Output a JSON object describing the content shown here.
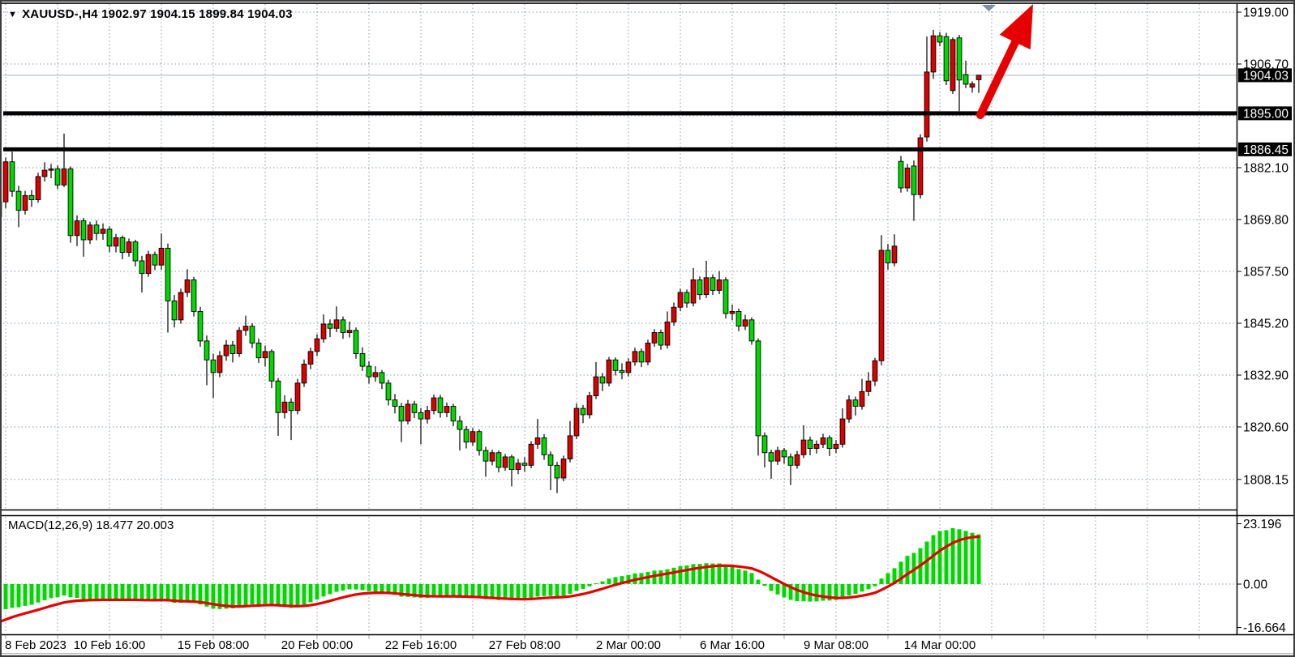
{
  "header": {
    "title": "XAUUSD-,H4  1902.97 1904.15 1899.84 1904.03",
    "symbol": "XAUUSD-",
    "timeframe": "H4",
    "open": "1902.97",
    "high": "1904.15",
    "low": "1899.84",
    "close": "1904.03"
  },
  "price_axis": {
    "labels": [
      {
        "text": "1919.00",
        "price": 1919.0
      },
      {
        "text": "1906.70",
        "price": 1906.7
      },
      {
        "text": "1882.10",
        "price": 1882.1
      },
      {
        "text": "1869.80",
        "price": 1869.8
      },
      {
        "text": "1857.50",
        "price": 1857.5
      },
      {
        "text": "1845.20",
        "price": 1845.2
      },
      {
        "text": "1832.90",
        "price": 1832.9
      },
      {
        "text": "1820.60",
        "price": 1820.6
      },
      {
        "text": "1808.15",
        "price": 1808.15
      }
    ],
    "boxed_labels": [
      {
        "text": "1904.03",
        "price": 1904.03,
        "kind": "current-price"
      },
      {
        "text": "1895.00",
        "price": 1895.0,
        "kind": "line-level"
      },
      {
        "text": "1886.45",
        "price": 1886.45,
        "kind": "line-level"
      }
    ]
  },
  "time_axis": {
    "labels": [
      {
        "text": "8 Feb 2023",
        "candle": 1
      },
      {
        "text": "10 Feb 16:00",
        "candle": 17
      },
      {
        "text": "15 Feb 08:00",
        "candle": 33
      },
      {
        "text": "20 Feb 00:00",
        "candle": 49
      },
      {
        "text": "22 Feb 16:00",
        "candle": 65
      },
      {
        "text": "27 Feb 08:00",
        "candle": 81
      },
      {
        "text": "2 Mar 00:00",
        "candle": 97
      },
      {
        "text": "6 Mar 16:00",
        "candle": 113
      },
      {
        "text": "9 Mar 08:00",
        "candle": 129
      },
      {
        "text": "14 Mar 00:00",
        "candle": 145
      }
    ]
  },
  "macd_panel": {
    "label": "MACD(12,26,9) 18.477 20.003",
    "params": "12,26,9",
    "macd_value": 18.477,
    "signal_value": 20.003,
    "axis_labels": [
      {
        "text": "23.196",
        "value": 23.196
      },
      {
        "text": "0.00",
        "value": 0
      },
      {
        "text": "-16.664",
        "value": -16.664
      }
    ]
  },
  "annotations": {
    "horizontal_lines": [
      1895.0,
      1886.45
    ],
    "current_price_line": 1904.03,
    "trend_arrow": {
      "color": "#e60000",
      "direction": "up"
    },
    "anchor_triangle_color": "#7d8fa6"
  },
  "colors": {
    "background": "#ffffff",
    "grid": "#8d9cb0",
    "bull_candle": "#dc0000",
    "bear_candle": "#00d800",
    "candle_border": "#000000",
    "macd_histogram": "#00d800",
    "macd_signal": "#e60000",
    "level_line": "#000000",
    "current_price_line_color": "#b5c0ce",
    "axis_text": "#000000"
  },
  "chart_data": {
    "type": "candlestick",
    "title": "XAUUSD- H4",
    "ylim": [
      1802,
      1921.5
    ],
    "price_gridlines": [
      1919.0,
      1906.7,
      1894.4,
      1882.1,
      1869.8,
      1857.5,
      1845.2,
      1832.9,
      1820.6,
      1808.15
    ],
    "macd_ylim": [
      -26,
      26
    ],
    "legend_position": "none",
    "grid": true,
    "note_color_scheme": "bullish candles red, bearish candles green",
    "candles": [
      [
        1870.5,
        1876.8,
        1868.9,
        1874.0
      ],
      [
        1874.0,
        1884.5,
        1872.5,
        1883.5
      ],
      [
        1883.5,
        1885.9,
        1875.2,
        1876.5
      ],
      [
        1876.5,
        1877.8,
        1868.0,
        1872.0
      ],
      [
        1872.0,
        1876.6,
        1871.0,
        1875.5
      ],
      [
        1875.5,
        1876.8,
        1872.8,
        1874.5
      ],
      [
        1874.5,
        1880.9,
        1873.8,
        1880.0
      ],
      [
        1880.0,
        1883.4,
        1878.8,
        1881.5
      ],
      [
        1881.5,
        1883.0,
        1879.6,
        1881.8
      ],
      [
        1881.8,
        1882.6,
        1877.0,
        1878.0
      ],
      [
        1878.0,
        1890.2,
        1877.5,
        1881.8
      ],
      [
        1881.8,
        1882.4,
        1864.3,
        1866.0
      ],
      [
        1866.0,
        1870.8,
        1863.5,
        1869.5
      ],
      [
        1869.5,
        1870.2,
        1861.0,
        1865.0
      ],
      [
        1865.0,
        1869.3,
        1864.0,
        1868.5
      ],
      [
        1868.5,
        1869.6,
        1864.9,
        1866.5
      ],
      [
        1866.5,
        1868.9,
        1865.0,
        1867.5
      ],
      [
        1867.5,
        1868.2,
        1862.1,
        1863.5
      ],
      [
        1863.5,
        1866.4,
        1862.0,
        1865.5
      ],
      [
        1865.5,
        1866.0,
        1860.4,
        1862.0
      ],
      [
        1862.0,
        1865.3,
        1861.0,
        1864.5
      ],
      [
        1864.5,
        1865.0,
        1858.7,
        1860.0
      ],
      [
        1860.0,
        1861.2,
        1852.5,
        1857.0
      ],
      [
        1857.0,
        1862.4,
        1856.2,
        1861.5
      ],
      [
        1861.5,
        1862.2,
        1857.8,
        1859.0
      ],
      [
        1859.0,
        1866.5,
        1857.9,
        1863.0
      ],
      [
        1863.0,
        1864.1,
        1843.0,
        1850.5
      ],
      [
        1850.5,
        1851.9,
        1844.2,
        1846.0
      ],
      [
        1846.0,
        1853.4,
        1845.1,
        1852.5
      ],
      [
        1852.5,
        1858.0,
        1851.4,
        1855.5
      ],
      [
        1855.5,
        1856.2,
        1846.8,
        1848.0
      ],
      [
        1848.0,
        1849.1,
        1839.6,
        1841.0
      ],
      [
        1841.0,
        1842.3,
        1830.5,
        1836.5
      ],
      [
        1836.5,
        1838.0,
        1827.5,
        1833.5
      ],
      [
        1833.5,
        1838.6,
        1832.4,
        1837.5
      ],
      [
        1837.5,
        1841.2,
        1836.3,
        1840.0
      ],
      [
        1840.0,
        1841.0,
        1835.9,
        1838.0
      ],
      [
        1838.0,
        1844.3,
        1837.2,
        1843.5
      ],
      [
        1843.5,
        1847.0,
        1842.2,
        1844.5
      ],
      [
        1844.5,
        1845.2,
        1839.3,
        1840.5
      ],
      [
        1840.5,
        1841.6,
        1835.8,
        1837.0
      ],
      [
        1837.0,
        1839.9,
        1834.9,
        1838.5
      ],
      [
        1838.5,
        1839.0,
        1829.8,
        1831.5
      ],
      [
        1831.5,
        1832.2,
        1818.5,
        1824.0
      ],
      [
        1824.0,
        1828.1,
        1822.6,
        1826.5
      ],
      [
        1826.5,
        1827.4,
        1817.5,
        1824.5
      ],
      [
        1824.5,
        1832.0,
        1823.6,
        1831.0
      ],
      [
        1831.0,
        1836.6,
        1830.1,
        1835.5
      ],
      [
        1835.5,
        1839.4,
        1834.3,
        1838.5
      ],
      [
        1838.5,
        1842.6,
        1837.4,
        1841.5
      ],
      [
        1841.5,
        1847.3,
        1840.6,
        1845.0
      ],
      [
        1845.0,
        1846.1,
        1841.9,
        1844.0
      ],
      [
        1844.0,
        1849.2,
        1843.1,
        1846.0
      ],
      [
        1846.0,
        1846.8,
        1841.5,
        1843.0
      ],
      [
        1843.0,
        1845.6,
        1841.8,
        1843.5
      ],
      [
        1843.5,
        1844.2,
        1836.8,
        1838.0
      ],
      [
        1838.0,
        1839.5,
        1833.9,
        1835.0
      ],
      [
        1835.0,
        1836.2,
        1830.9,
        1832.5
      ],
      [
        1832.5,
        1835.0,
        1831.3,
        1833.5
      ],
      [
        1833.5,
        1834.1,
        1829.6,
        1831.0
      ],
      [
        1831.0,
        1831.8,
        1825.7,
        1827.0
      ],
      [
        1827.0,
        1828.4,
        1823.8,
        1825.5
      ],
      [
        1825.5,
        1826.3,
        1817.0,
        1822.0
      ],
      [
        1822.0,
        1827.0,
        1821.2,
        1826.0
      ],
      [
        1826.0,
        1826.8,
        1822.7,
        1824.0
      ],
      [
        1824.0,
        1825.1,
        1816.5,
        1822.5
      ],
      [
        1822.5,
        1825.6,
        1821.4,
        1824.5
      ],
      [
        1824.5,
        1828.3,
        1823.6,
        1827.5
      ],
      [
        1827.5,
        1828.2,
        1822.8,
        1824.0
      ],
      [
        1824.0,
        1826.4,
        1822.9,
        1825.5
      ],
      [
        1825.5,
        1826.1,
        1820.8,
        1822.0
      ],
      [
        1822.0,
        1823.2,
        1815.0,
        1820.0
      ],
      [
        1820.0,
        1820.8,
        1815.5,
        1817.0
      ],
      [
        1817.0,
        1820.3,
        1816.1,
        1819.5
      ],
      [
        1819.5,
        1820.0,
        1813.8,
        1815.0
      ],
      [
        1815.0,
        1815.9,
        1808.8,
        1812.5
      ],
      [
        1812.5,
        1815.2,
        1811.5,
        1814.5
      ],
      [
        1814.5,
        1815.0,
        1809.8,
        1811.0
      ],
      [
        1811.0,
        1814.2,
        1810.2,
        1813.5
      ],
      [
        1813.5,
        1814.0,
        1806.5,
        1810.5
      ],
      [
        1810.5,
        1813.0,
        1809.4,
        1812.0
      ],
      [
        1812.0,
        1813.4,
        1809.9,
        1811.5
      ],
      [
        1811.5,
        1817.2,
        1810.8,
        1816.5
      ],
      [
        1816.5,
        1822.5,
        1815.4,
        1818.0
      ],
      [
        1818.0,
        1818.9,
        1812.8,
        1814.0
      ],
      [
        1814.0,
        1814.8,
        1805.6,
        1811.5
      ],
      [
        1811.5,
        1812.3,
        1804.9,
        1808.5
      ],
      [
        1808.5,
        1813.8,
        1807.7,
        1813.0
      ],
      [
        1813.0,
        1822.0,
        1812.2,
        1818.5
      ],
      [
        1818.5,
        1826.2,
        1817.7,
        1825.0
      ],
      [
        1825.0,
        1825.8,
        1821.5,
        1823.5
      ],
      [
        1823.5,
        1828.9,
        1822.6,
        1828.0
      ],
      [
        1828.0,
        1836.0,
        1827.2,
        1832.5
      ],
      [
        1832.5,
        1833.4,
        1829.1,
        1831.0
      ],
      [
        1831.0,
        1837.2,
        1830.2,
        1836.5
      ],
      [
        1836.5,
        1837.1,
        1832.8,
        1834.0
      ],
      [
        1834.0,
        1835.7,
        1831.9,
        1833.5
      ],
      [
        1833.5,
        1836.9,
        1832.6,
        1836.0
      ],
      [
        1836.0,
        1839.4,
        1835.1,
        1838.5
      ],
      [
        1838.5,
        1839.2,
        1834.8,
        1836.0
      ],
      [
        1836.0,
        1841.3,
        1835.2,
        1840.5
      ],
      [
        1840.5,
        1843.8,
        1839.6,
        1843.0
      ],
      [
        1843.0,
        1843.7,
        1838.9,
        1840.0
      ],
      [
        1840.0,
        1848.0,
        1839.2,
        1845.5
      ],
      [
        1845.5,
        1850.1,
        1844.6,
        1849.0
      ],
      [
        1849.0,
        1853.4,
        1848.1,
        1852.5
      ],
      [
        1852.5,
        1853.2,
        1848.9,
        1850.0
      ],
      [
        1850.0,
        1858.3,
        1849.2,
        1855.5
      ],
      [
        1855.5,
        1856.3,
        1850.8,
        1852.0
      ],
      [
        1852.0,
        1860.0,
        1851.2,
        1856.0
      ],
      [
        1856.0,
        1856.8,
        1851.9,
        1853.0
      ],
      [
        1853.0,
        1857.6,
        1852.1,
        1855.5
      ],
      [
        1855.5,
        1856.1,
        1846.3,
        1847.5
      ],
      [
        1847.5,
        1849.6,
        1845.9,
        1848.0
      ],
      [
        1848.0,
        1848.7,
        1843.3,
        1844.5
      ],
      [
        1844.5,
        1847.2,
        1843.6,
        1846.0
      ],
      [
        1846.0,
        1846.6,
        1840.1,
        1841.0
      ],
      [
        1841.0,
        1841.6,
        1813.8,
        1818.5
      ],
      [
        1818.5,
        1819.3,
        1811.0,
        1814.5
      ],
      [
        1814.5,
        1815.2,
        1808.3,
        1812.5
      ],
      [
        1812.5,
        1815.9,
        1811.6,
        1815.0
      ],
      [
        1815.0,
        1815.6,
        1811.9,
        1813.5
      ],
      [
        1813.5,
        1814.3,
        1806.8,
        1811.5
      ],
      [
        1811.5,
        1814.9,
        1810.7,
        1814.0
      ],
      [
        1814.0,
        1821.0,
        1813.2,
        1817.5
      ],
      [
        1817.5,
        1818.3,
        1813.9,
        1815.5
      ],
      [
        1815.5,
        1817.4,
        1814.3,
        1816.5
      ],
      [
        1816.5,
        1819.0,
        1815.6,
        1818.0
      ],
      [
        1818.0,
        1818.6,
        1813.7,
        1815.5
      ],
      [
        1815.5,
        1817.5,
        1814.4,
        1816.5
      ],
      [
        1816.5,
        1825.0,
        1815.7,
        1822.5
      ],
      [
        1822.5,
        1828.1,
        1821.6,
        1827.0
      ],
      [
        1827.0,
        1827.8,
        1823.3,
        1825.5
      ],
      [
        1825.5,
        1832.0,
        1824.7,
        1829.0
      ],
      [
        1829.0,
        1833.6,
        1827.9,
        1831.5
      ],
      [
        1831.5,
        1837.0,
        1830.3,
        1836.3
      ],
      [
        1836.3,
        1866.1,
        1835.2,
        1862.5
      ],
      [
        1862.5,
        1864.0,
        1857.9,
        1859.5
      ],
      [
        1859.5,
        1866.3,
        1858.7,
        1863.5
      ],
      [
        1883.6,
        1884.9,
        1876.2,
        1877.3
      ],
      [
        1877.3,
        1883.0,
        1876.4,
        1882.0
      ],
      [
        1882.5,
        1883.8,
        1869.5,
        1875.7
      ],
      [
        1875.7,
        1890.0,
        1874.8,
        1889.2
      ],
      [
        1889.4,
        1913.2,
        1888.3,
        1904.8
      ],
      [
        1904.8,
        1914.8,
        1903.2,
        1913.4
      ],
      [
        1913.4,
        1914.3,
        1910.9,
        1911.9
      ],
      [
        1913.2,
        1914.1,
        1901.7,
        1902.7
      ],
      [
        1900.4,
        1913.0,
        1899.6,
        1912.5
      ],
      [
        1912.9,
        1913.6,
        1895.5,
        1902.9
      ],
      [
        1904.2,
        1907.5,
        1901.0,
        1901.9
      ],
      [
        1901.2,
        1902.6,
        1899.9,
        1902.0
      ],
      [
        1902.97,
        1904.15,
        1899.84,
        1904.03
      ]
    ]
  }
}
